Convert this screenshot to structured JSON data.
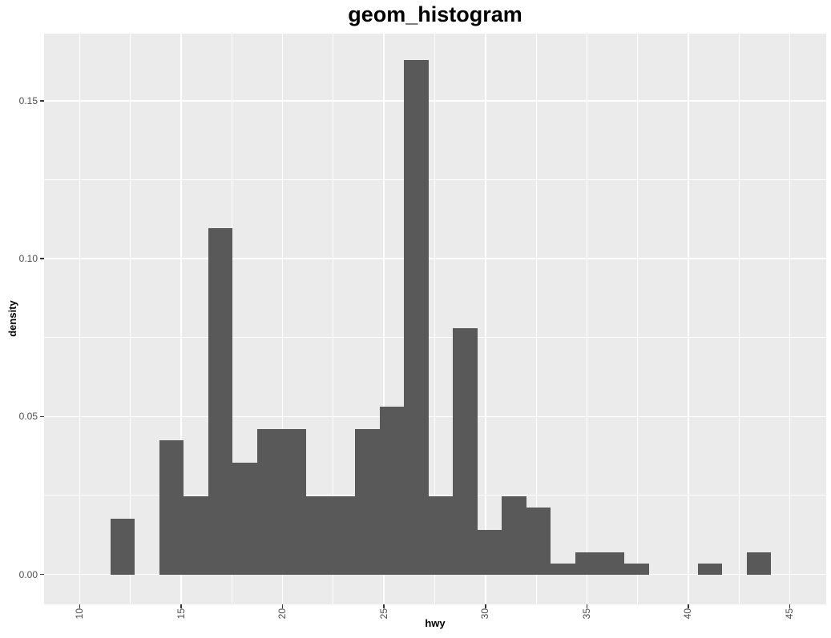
{
  "title": "geom_histogram",
  "x_axis": {
    "label": "hwy",
    "tick_labels": [
      "10",
      "15",
      "20",
      "25",
      "30",
      "35",
      "40",
      "45"
    ],
    "tick_values": [
      10,
      15,
      20,
      25,
      30,
      35,
      40,
      45
    ],
    "domain": [
      8.24,
      46.8
    ]
  },
  "y_axis": {
    "label": "density",
    "tick_labels": [
      "0.00",
      "0.05",
      "0.10",
      "0.15"
    ],
    "tick_values": [
      0,
      0.05,
      0.1,
      0.15
    ],
    "domain": [
      -0.0095,
      0.1713
    ]
  },
  "chart_data": {
    "type": "bar",
    "subtype": "histogram",
    "title": "geom_histogram",
    "xlabel": "hwy",
    "ylabel": "density",
    "grid": true,
    "legend": false,
    "bin_start": 11.5,
    "bin_width": 1.2069,
    "xlim": [
      8.24,
      46.8
    ],
    "ylim": [
      -0.0095,
      0.1713
    ],
    "densities": [
      0.0177,
      0,
      0.04249,
      0.02479,
      0.10977,
      0.03541,
      0.04603,
      0.04603,
      0.02479,
      0.02479,
      0.04603,
      0.05311,
      0.16288,
      0.02479,
      0.0779,
      0.01416,
      0.02479,
      0.02124,
      0.00354,
      0.00708,
      0.00708,
      0.00354,
      0,
      0,
      0.00354,
      0,
      0.00708
    ]
  },
  "colors": {
    "bar_fill": "#595959",
    "panel_background": "#EBEBEB",
    "grid_major": "#FFFFFF",
    "grid_minor": "#FFFFFF",
    "tick_text": "#4D4D4D",
    "axis_title_text": "#000000",
    "title_text": "#000000",
    "tick_mark": "#333333",
    "outer_background": "#FFFFFF"
  }
}
